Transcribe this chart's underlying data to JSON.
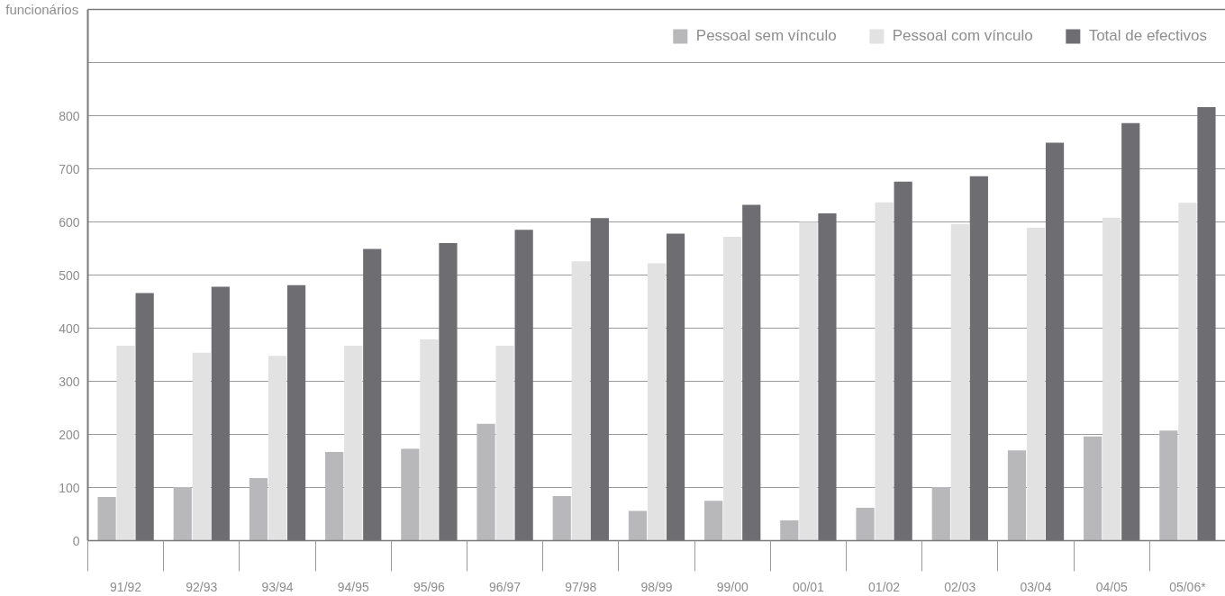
{
  "chart_data": {
    "type": "bar",
    "ylabel": "funcionários",
    "categories": [
      "91/92",
      "92/93",
      "93/94",
      "94/95",
      "95/96",
      "96/97",
      "97/98",
      "98/99",
      "99/00",
      "00/01",
      "01/02",
      "02/03",
      "03/04",
      "04/05",
      "05/06*"
    ],
    "series": [
      {
        "name": "Pessoal sem vínculo",
        "color": "#b8b8ba",
        "values": [
          82,
          101,
          118,
          167,
          173,
          220,
          84,
          56,
          75,
          38,
          62,
          101,
          170,
          196,
          207
        ]
      },
      {
        "name": "Pessoal com vínculo",
        "color": "#e2e2e2",
        "values": [
          367,
          354,
          348,
          367,
          379,
          367,
          526,
          522,
          572,
          600,
          637,
          596,
          589,
          608,
          636
        ]
      },
      {
        "name": "Total de efectivos",
        "color": "#6e6d72",
        "values": [
          466,
          478,
          481,
          549,
          560,
          585,
          607,
          578,
          632,
          616,
          676,
          686,
          749,
          786,
          816
        ]
      }
    ],
    "ylim": [
      0,
      1000
    ],
    "yticks": [
      0,
      100,
      200,
      300,
      400,
      500,
      600,
      700,
      800,
      {
        "value": 900,
        "label": null
      },
      {
        "value": 1000,
        "label": null
      }
    ],
    "grid": "y",
    "legend": "top right"
  }
}
